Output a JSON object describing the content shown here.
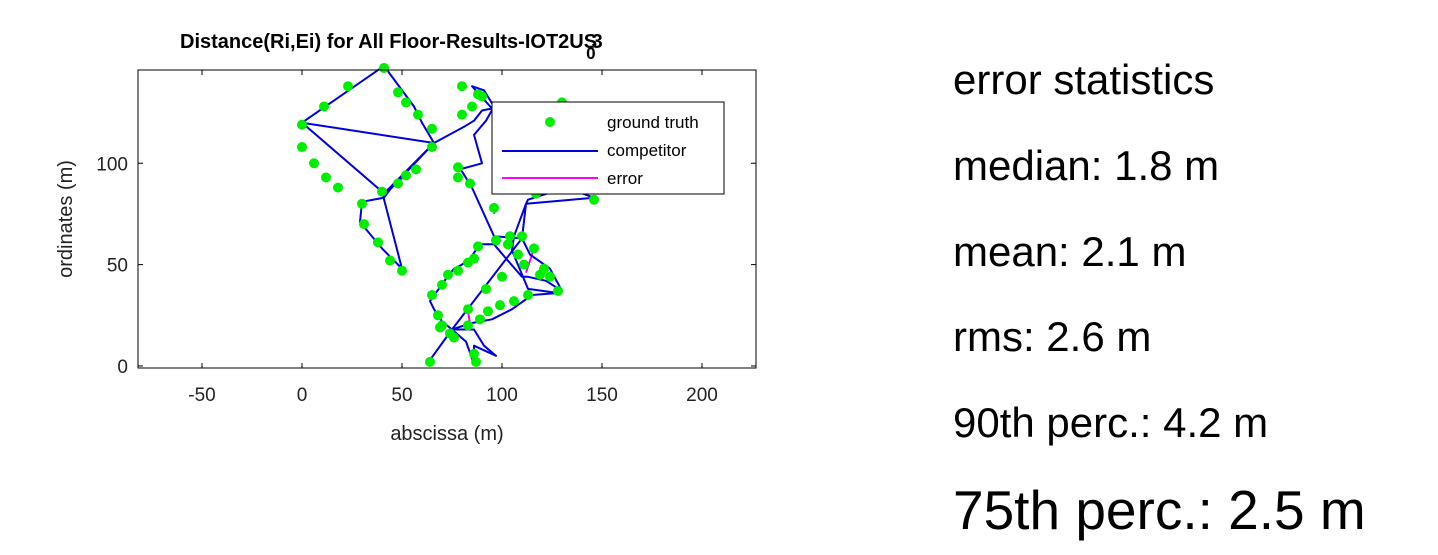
{
  "chart_data": {
    "type": "scatter",
    "title": "Distance(Ri,Ei) for All Floor-Results-IOT2US",
    "title_subscript": "0",
    "title_suffix": "3",
    "xlabel": "abscissa (m)",
    "ylabel": "ordinates (m)",
    "xlim": [
      -82,
      227
    ],
    "ylim": [
      -1,
      146
    ],
    "xticks": [
      -50,
      0,
      50,
      100,
      150,
      200
    ],
    "yticks": [
      0,
      50,
      100
    ],
    "grid": false,
    "legend_position": "top-right",
    "legend": [
      "ground truth",
      "competitor",
      "error"
    ],
    "colors": {
      "ground_truth": "#00ee00",
      "competitor": "#0000dd",
      "error": "#ff00ff"
    },
    "series": [
      {
        "name": "ground truth",
        "style": "markers",
        "points": [
          [
            41,
            147
          ],
          [
            48,
            135
          ],
          [
            52,
            130
          ],
          [
            58,
            124
          ],
          [
            65,
            117
          ],
          [
            65,
            108
          ],
          [
            0,
            119
          ],
          [
            11,
            128
          ],
          [
            23,
            138
          ],
          [
            0,
            108
          ],
          [
            6,
            100
          ],
          [
            12,
            93
          ],
          [
            18,
            88
          ],
          [
            40,
            86
          ],
          [
            30,
            80
          ],
          [
            31,
            70
          ],
          [
            38,
            61
          ],
          [
            44,
            52
          ],
          [
            50,
            47
          ],
          [
            48,
            90
          ],
          [
            52,
            94
          ],
          [
            57,
            97
          ],
          [
            80,
            138
          ],
          [
            88,
            134
          ],
          [
            90,
            133
          ],
          [
            85,
            128
          ],
          [
            80,
            124
          ],
          [
            130,
            130
          ],
          [
            134,
            128
          ],
          [
            128,
            118
          ],
          [
            125,
            108
          ],
          [
            110,
            104
          ],
          [
            115,
            93
          ],
          [
            117,
            85
          ],
          [
            146,
            82
          ],
          [
            78,
            98
          ],
          [
            78,
            93
          ],
          [
            84,
            90
          ],
          [
            96,
            78
          ],
          [
            104,
            64
          ],
          [
            110,
            64
          ],
          [
            116,
            58
          ],
          [
            121,
            48
          ],
          [
            128,
            37
          ],
          [
            124,
            44
          ],
          [
            119,
            45
          ],
          [
            111,
            50
          ],
          [
            108,
            55
          ],
          [
            103,
            60
          ],
          [
            97,
            62
          ],
          [
            88,
            59
          ],
          [
            86,
            53
          ],
          [
            83,
            51
          ],
          [
            78,
            47
          ],
          [
            73,
            45
          ],
          [
            70,
            40
          ],
          [
            65,
            35
          ],
          [
            68,
            25
          ],
          [
            69,
            19
          ],
          [
            70,
            20
          ],
          [
            74,
            16
          ],
          [
            76,
            14
          ],
          [
            83,
            20
          ],
          [
            89,
            23
          ],
          [
            93,
            27
          ],
          [
            99,
            30
          ],
          [
            106,
            32
          ],
          [
            113,
            35
          ],
          [
            92,
            38
          ],
          [
            100,
            44
          ],
          [
            83,
            28
          ],
          [
            86,
            6
          ],
          [
            87,
            2
          ],
          [
            64,
            2
          ]
        ]
      },
      {
        "name": "competitor",
        "style": "line",
        "points": [
          [
            0,
            120
          ],
          [
            41,
            148
          ],
          [
            56,
            128
          ],
          [
            60,
            120
          ],
          [
            66,
            110
          ],
          [
            44,
            87
          ],
          [
            41,
            83
          ],
          [
            30,
            81
          ],
          [
            29,
            71
          ],
          [
            40,
            58
          ],
          [
            50,
            48
          ],
          [
            40,
            86
          ],
          [
            0,
            120
          ],
          [
            66,
            110
          ],
          [
            55,
            99
          ],
          [
            46,
            90
          ],
          [
            42,
            86
          ],
          [
            66,
            110
          ],
          [
            81,
            118
          ],
          [
            86,
            121
          ],
          [
            90,
            126
          ],
          [
            95,
            127
          ],
          [
            85,
            138
          ],
          [
            91,
            136
          ],
          [
            96,
            128
          ],
          [
            92,
            121
          ],
          [
            86,
            114
          ],
          [
            90,
            100
          ],
          [
            79,
            97
          ],
          [
            80,
            96
          ],
          [
            85,
            88
          ],
          [
            96,
            64
          ],
          [
            110,
            63
          ],
          [
            114,
            55
          ],
          [
            124,
            48
          ],
          [
            130,
            37
          ],
          [
            122,
            42
          ],
          [
            113,
            44
          ],
          [
            110,
            44
          ],
          [
            102,
            53
          ],
          [
            96,
            60
          ],
          [
            89,
            60
          ],
          [
            84,
            53
          ],
          [
            80,
            50
          ],
          [
            76,
            48
          ],
          [
            72,
            43
          ],
          [
            64,
            32
          ],
          [
            66,
            28
          ],
          [
            70,
            22
          ],
          [
            75,
            18
          ],
          [
            84,
            21
          ],
          [
            95,
            23
          ],
          [
            105,
            28
          ],
          [
            115,
            35
          ],
          [
            128,
            36
          ],
          [
            113,
            38
          ],
          [
            105,
            57
          ],
          [
            106,
            64
          ],
          [
            112,
            80
          ],
          [
            146,
            83
          ],
          [
            132,
            88
          ],
          [
            113,
            82
          ],
          [
            112,
            80
          ],
          [
            110,
            63
          ],
          [
            75,
            18
          ],
          [
            86,
            18
          ],
          [
            91,
            10
          ],
          [
            97,
            5
          ],
          [
            86,
            10
          ],
          [
            86,
            1
          ],
          [
            82,
            12
          ],
          [
            75,
            18
          ],
          [
            64,
            3
          ]
        ]
      },
      {
        "name": "error",
        "style": "segments",
        "segments": [
          [
            [
              52,
              94
            ],
            [
              48,
              91
            ]
          ],
          [
            [
              116,
              58
            ],
            [
              112,
              46
            ]
          ],
          [
            [
              84,
              21
            ],
            [
              83,
              27
            ]
          ],
          [
            [
              65,
              108
            ],
            [
              64,
              110
            ]
          ],
          [
            [
              125,
              108
            ],
            [
              122,
              111
            ]
          ],
          [
            [
              110,
              64
            ],
            [
              108,
              63
            ]
          ],
          [
            [
              103,
              60
            ],
            [
              102,
              59
            ]
          ],
          [
            [
              113,
              35
            ],
            [
              114,
              37
            ]
          ],
          [
            [
              64,
              2
            ],
            [
              64,
              4
            ]
          ],
          [
            [
              87,
              2
            ],
            [
              86,
              4
            ]
          ],
          [
            [
              97,
              78
            ],
            [
              96,
              75
            ]
          ],
          [
            [
              80,
              138
            ],
            [
              82,
              138
            ]
          ]
        ]
      }
    ]
  },
  "stats": {
    "heading": "error statistics",
    "median": "median: 1.8 m",
    "mean": "mean: 2.1 m",
    "rms": "rms: 2.6 m",
    "p90": "90th perc.: 4.2 m",
    "p75": "75th perc.: 2.5 m"
  }
}
